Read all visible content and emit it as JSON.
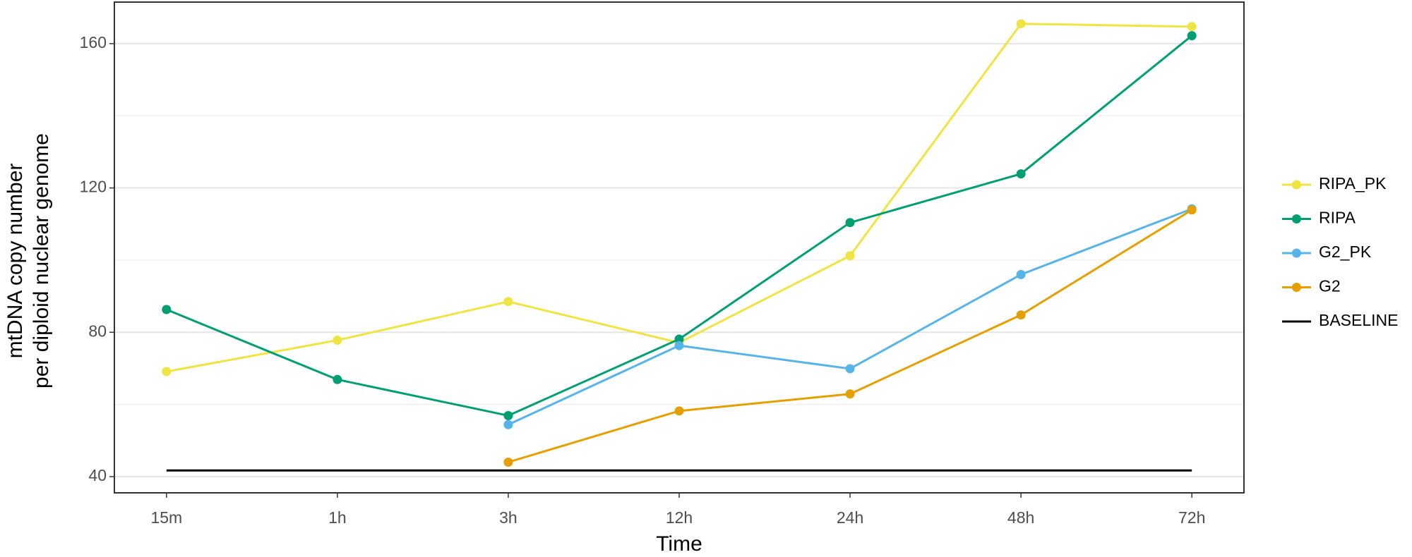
{
  "chart_data": {
    "type": "line",
    "x_label": "Time",
    "y_label": [
      "mtDNA copy number",
      "per diploid nuclear genome"
    ],
    "categories": [
      "15m",
      "1h",
      "3h",
      "12h",
      "24h",
      "48h",
      "72h"
    ],
    "series": [
      {
        "name": "RIPA_PK",
        "color": "#f0e442",
        "markers": true,
        "values": [
          69.1,
          77.8,
          88.5,
          77.1,
          101.2,
          165.5,
          164.7
        ]
      },
      {
        "name": "RIPA",
        "color": "#009e73",
        "markers": true,
        "values": [
          86.3,
          66.9,
          56.9,
          78.1,
          110.4,
          123.9,
          162.2
        ]
      },
      {
        "name": "G2_PK",
        "color": "#56b4e9",
        "markers": true,
        "values": [
          null,
          null,
          54.4,
          76.3,
          69.9,
          96,
          114.2
        ]
      },
      {
        "name": "G2",
        "color": "#e69f00",
        "markers": true,
        "values": [
          null,
          null,
          44,
          58.2,
          62.9,
          84.8,
          113.9
        ]
      },
      {
        "name": "BASELINE",
        "color": "#000000",
        "markers": false,
        "values": [
          41.7,
          41.7,
          41.7,
          41.7,
          41.7,
          41.7,
          41.7
        ]
      }
    ],
    "ylim": [
      35.5,
      171.5
    ],
    "yticks": [
      40,
      80,
      120,
      160
    ],
    "minor_yticks": [
      60,
      100,
      140
    ],
    "grid": true,
    "legend": "right"
  }
}
